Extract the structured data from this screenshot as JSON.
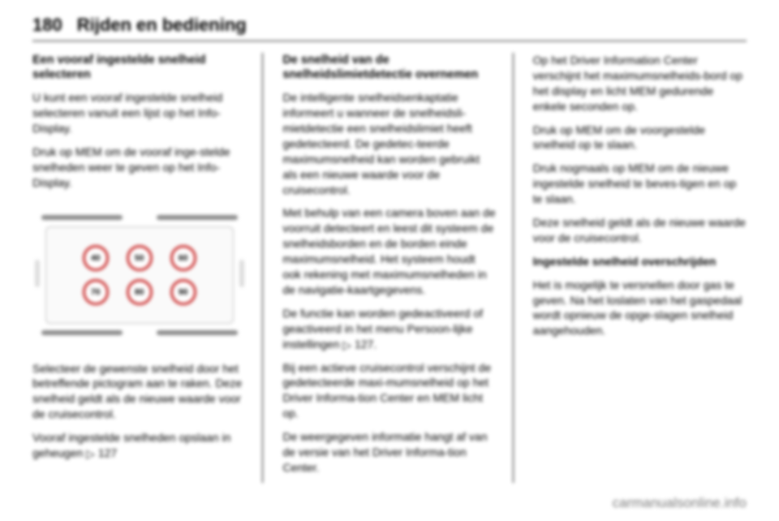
{
  "page": {
    "number": "180",
    "title": "Rijden en bediening"
  },
  "col1": {
    "h_preset": "Een vooraf ingestelde snelheid selecteren",
    "p1": "U kunt een vooraf ingestelde snelheid selecteren vanuit een lijst op het Info-Display.",
    "p2": "Druk op MEM om de vooraf inge-stelde snelheden weer te geven op het Info-Display.",
    "p3": "Selecteer de gewenste snelheid door het betreffende pictogram aan te raken. Deze snelheid geldt als de nieuwe waarde voor de cruisecontrol.",
    "p4_prefix": "Vooraf ingestelde snelheden opslaan in geheugen ",
    "p4_ref": "127",
    "speeds_row1": [
      "40",
      "50",
      "60"
    ],
    "speeds_row2": [
      "70",
      "80",
      "90"
    ]
  },
  "col2": {
    "h_override": "De snelheid van de snelheidslimietdetectie overnemen",
    "p1": "De intelligente snelheidsenkaptatie informeert u wanneer de snelheidsli-mietdetectie een snelheidslimiet heeft gedetecteerd. De gedetec-teerde maximumsnelheid kan worden gebruikt als een nieuwe waarde voor de cruisecontrol.",
    "p2": "Met behulp van een camera boven aan de voorruit detecteert en leest dit systeem de snelheidsborden en de borden einde maximumsnelheid. Het systeem houdt ook rekening met maximumsnelheden in de navigatie-kaartgegevens.",
    "p3_prefix": "De functie kan worden gedeactiveerd of geactiveerd in het menu Persoon-lijke instellingen ",
    "p3_ref": "127",
    "p3_suffix": ".",
    "p4": "Bij een actieve cruisecontrol verschijnt de gedetecteerde maxi-mumsnelheid op het Driver Informa-tion Center en MEM licht op.",
    "p5": "De weergegeven informatie hangt af van de versie van het Driver Informa-tion Center."
  },
  "col3": {
    "p1": "Op het Driver Information Center verschijnt het maximumsnelheids-bord op het display en licht MEM gedurende enkele seconden op.",
    "p2": "Druk op MEM om de voorgestelde snelheid op te slaan.",
    "p3": "Druk nogmaals op MEM om de nieuwe ingestelde snelheid te beves-tigen en op te slaan.",
    "p4": "Deze snelheid geldt als de nieuwe waarde voor de cruisecontrol.",
    "h_exceed": "Ingestelde snelheid overschrijden",
    "p5": "Het is mogelijk te versnellen door gas te geven. Na het loslaten van het gaspedaal wordt opnieuw de opge-slagen snelheid aangehouden."
  },
  "footer": {
    "text": "carmanualsonline.info"
  },
  "style": {
    "sign_border_color": "#c92a2a"
  }
}
